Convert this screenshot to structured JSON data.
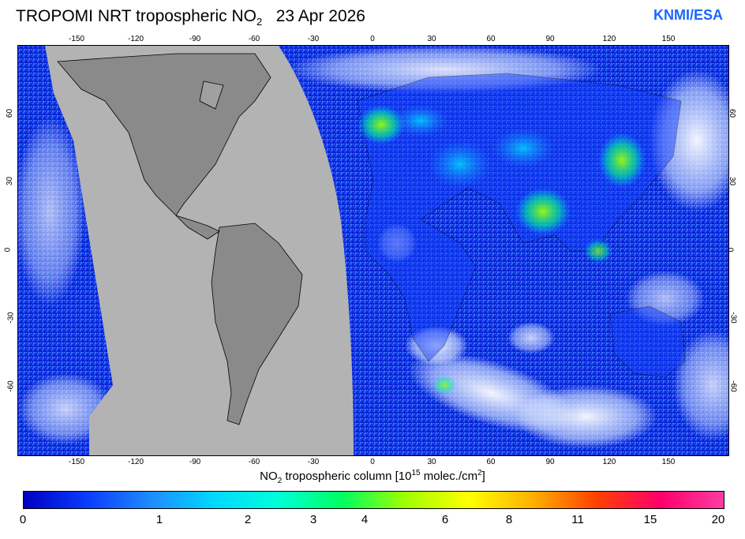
{
  "header": {
    "title_prefix": "TROPOMI  NRT tropospheric NO",
    "title_sub": "2",
    "title_date": "23 Apr 2026",
    "brand": "KNMI/ESA"
  },
  "map": {
    "lon_ticks": [
      "-150",
      "-120",
      "-90",
      "-60",
      "-30",
      "0",
      "30",
      "60",
      "90",
      "120",
      "150"
    ],
    "lat_ticks_left": [
      "60",
      "30",
      "0",
      "-30",
      "-60"
    ],
    "lat_ticks_right": [
      "60",
      "30",
      "0",
      "-30",
      "-60"
    ],
    "no_data_color": "#b3b3b3",
    "land_color": "#8a8a8a"
  },
  "axis": {
    "label_prefix": "NO",
    "label_sub": "2",
    "label_mid": " tropospheric column [10",
    "label_sup1": "15",
    "label_mid2": " molec./cm",
    "label_sup2": "2",
    "label_end": "]"
  },
  "colorbar": {
    "labels": [
      "0",
      "1",
      "2",
      "3",
      "4",
      "6",
      "8",
      "11",
      "15",
      "20"
    ],
    "stops": [
      "#0000c0",
      "#0a3cff",
      "#1e8cff",
      "#00d8ff",
      "#00ffd8",
      "#00ff60",
      "#a0ff00",
      "#ffff00",
      "#ffb000",
      "#ff4000",
      "#ff006a",
      "#ff3ca0"
    ]
  }
}
